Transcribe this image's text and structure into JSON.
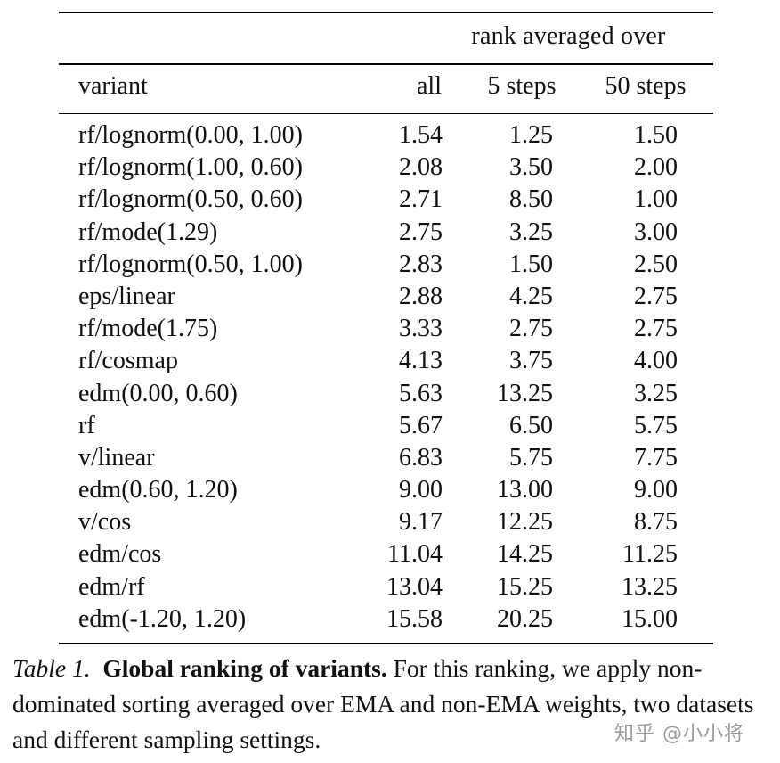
{
  "table": {
    "group_header": "rank averaged over",
    "columns": [
      "variant",
      "all",
      "5 steps",
      "50 steps"
    ],
    "rows": [
      [
        "rf/lognorm(0.00, 1.00)",
        "1.54",
        "1.25",
        "1.50"
      ],
      [
        "rf/lognorm(1.00, 0.60)",
        "2.08",
        "3.50",
        "2.00"
      ],
      [
        "rf/lognorm(0.50, 0.60)",
        "2.71",
        "8.50",
        "1.00"
      ],
      [
        "rf/mode(1.29)",
        "2.75",
        "3.25",
        "3.00"
      ],
      [
        "rf/lognorm(0.50, 1.00)",
        "2.83",
        "1.50",
        "2.50"
      ],
      [
        "eps/linear",
        "2.88",
        "4.25",
        "2.75"
      ],
      [
        "rf/mode(1.75)",
        "3.33",
        "2.75",
        "2.75"
      ],
      [
        "rf/cosmap",
        "4.13",
        "3.75",
        "4.00"
      ],
      [
        "edm(0.00, 0.60)",
        "5.63",
        "13.25",
        "3.25"
      ],
      [
        "rf",
        "5.67",
        "6.50",
        "5.75"
      ],
      [
        "v/linear",
        "6.83",
        "5.75",
        "7.75"
      ],
      [
        "edm(0.60, 1.20)",
        "9.00",
        "13.00",
        "9.00"
      ],
      [
        "v/cos",
        "9.17",
        "12.25",
        "8.75"
      ],
      [
        "edm/cos",
        "11.04",
        "14.25",
        "11.25"
      ],
      [
        "edm/rf",
        "13.04",
        "15.25",
        "13.25"
      ],
      [
        "edm(-1.20, 1.20)",
        "15.58",
        "20.25",
        "15.00"
      ]
    ]
  },
  "caption": {
    "label": "Table 1.",
    "title": "Global ranking of variants.",
    "text": "For this ranking, we apply non-dominated sorting averaged over EMA and non-EMA weights, two datasets and different sampling settings."
  },
  "watermark": "知乎 @小小将"
}
